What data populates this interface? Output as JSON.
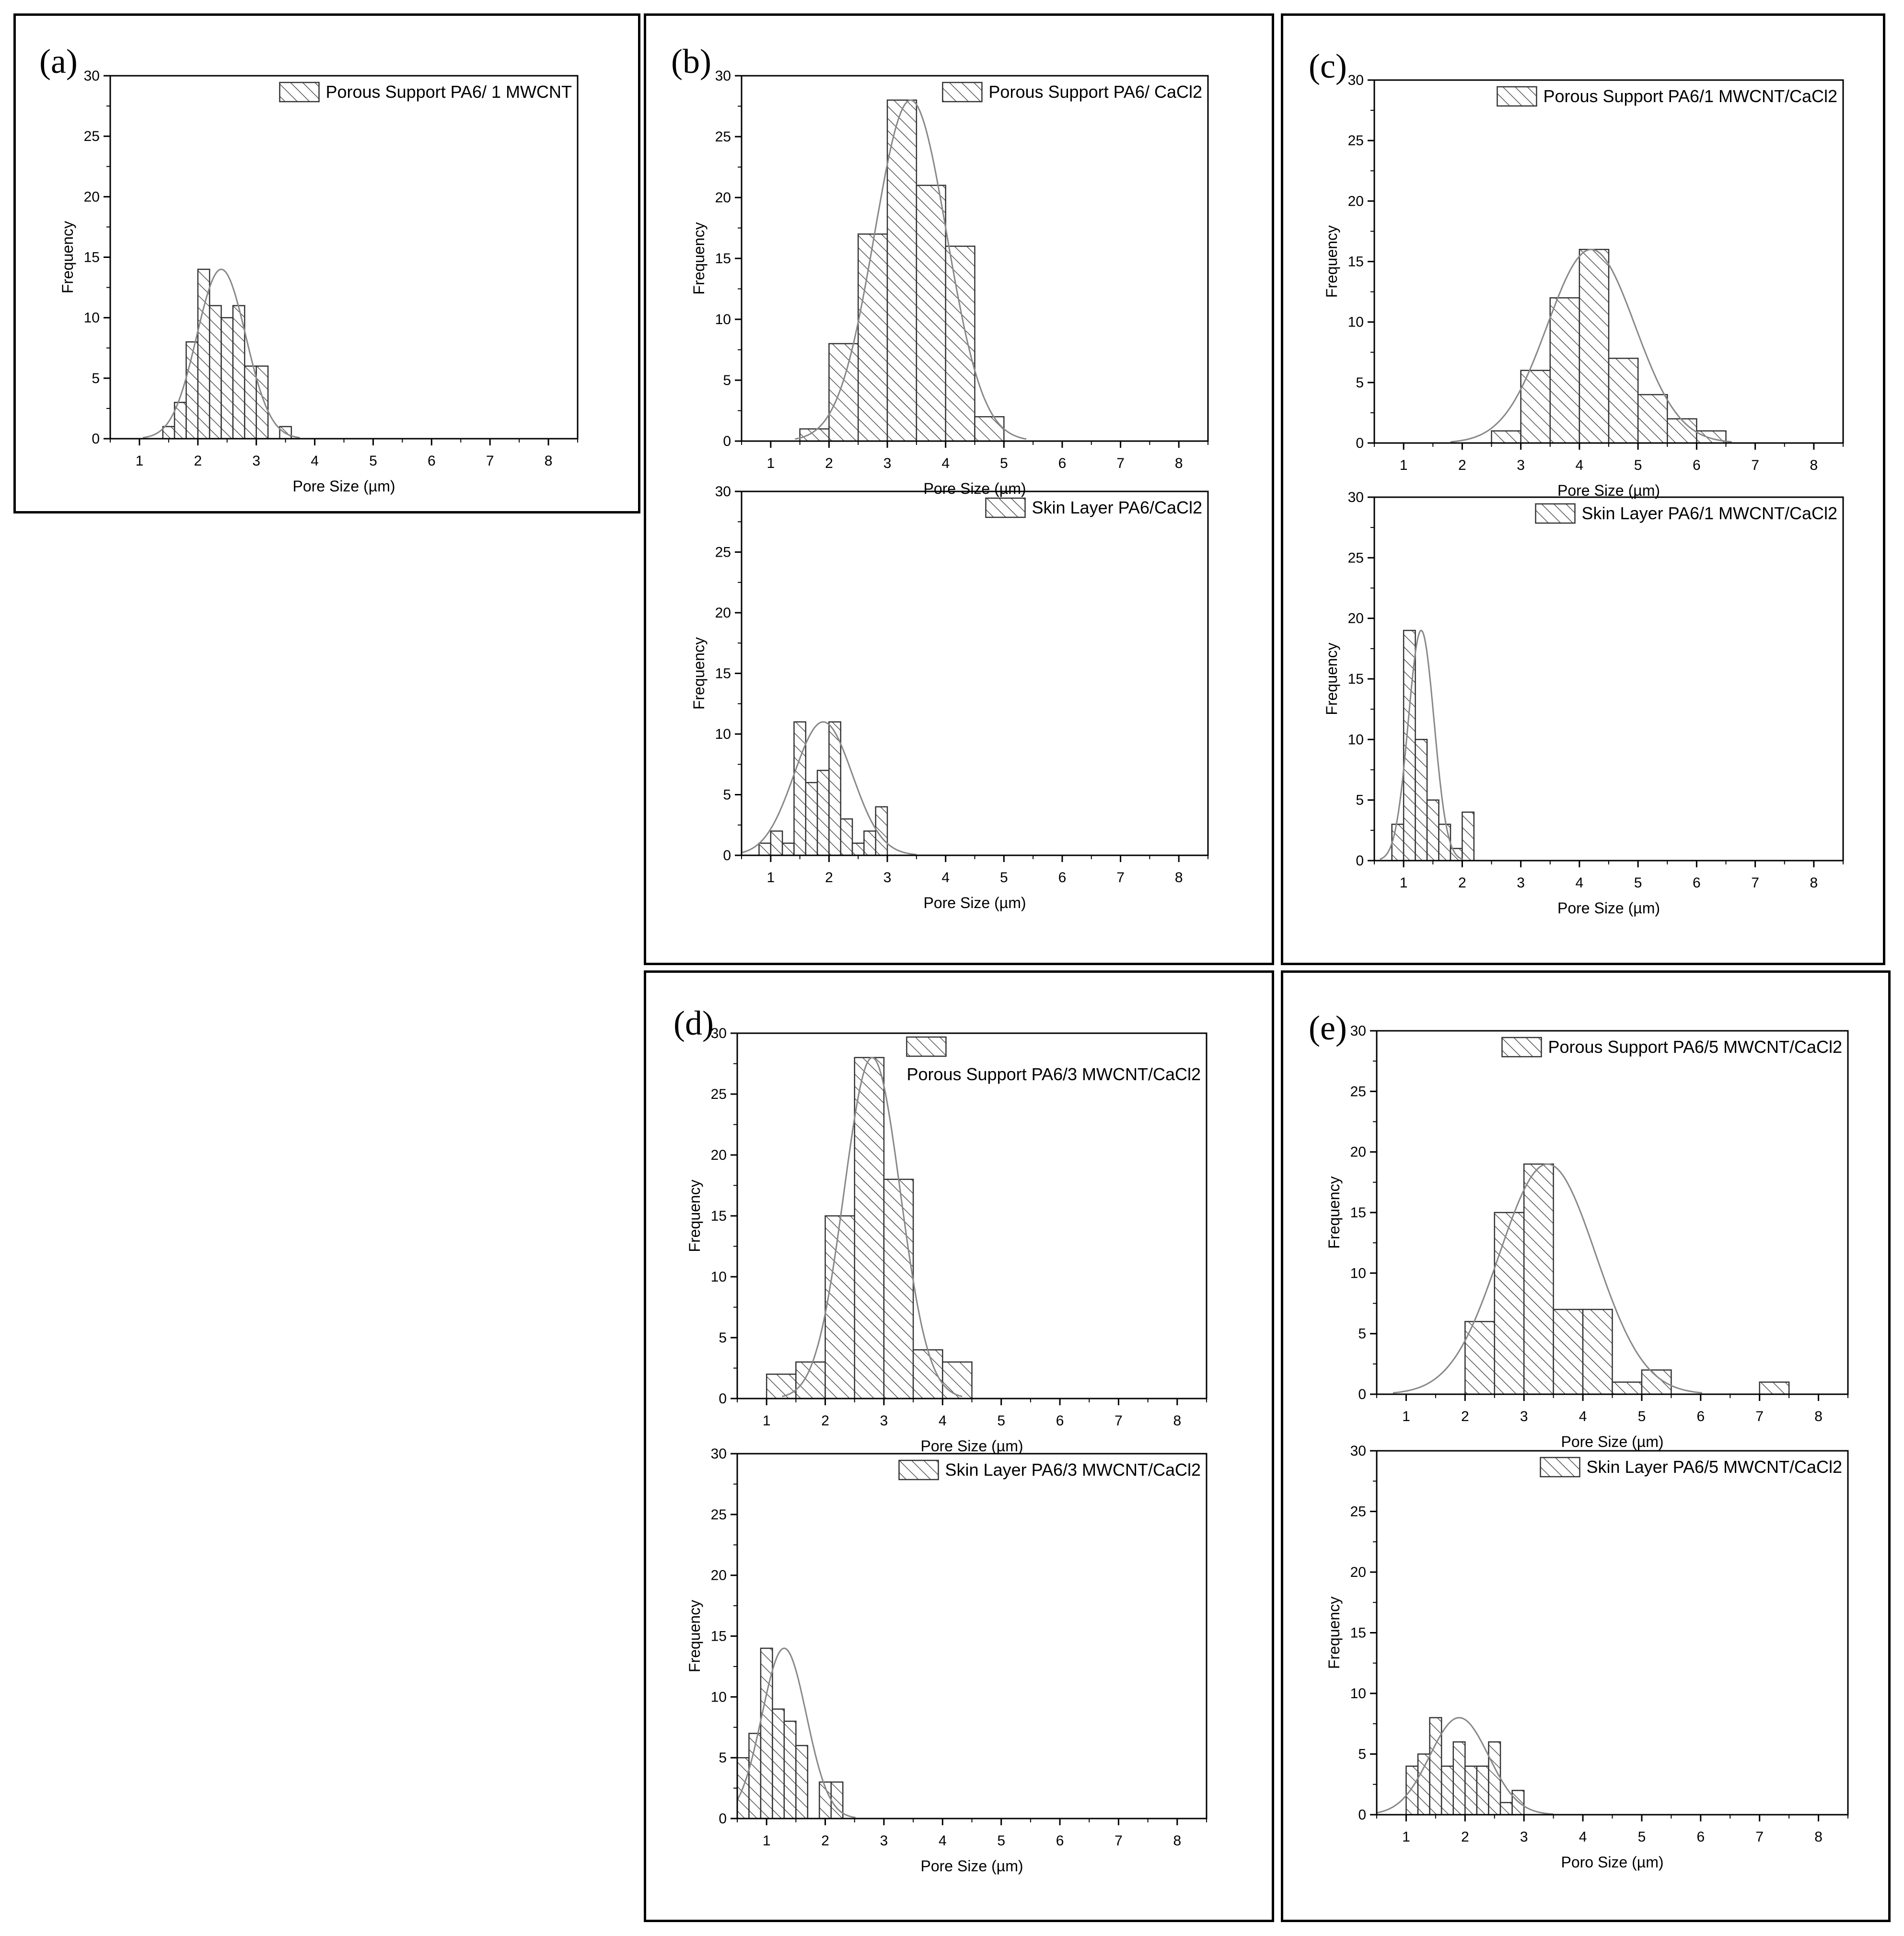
{
  "figure": {
    "panels": [
      {
        "id": "a",
        "label": "(a)"
      },
      {
        "id": "b",
        "label": "(b)"
      },
      {
        "id": "c",
        "label": "(c)"
      },
      {
        "id": "d",
        "label": "(d)"
      },
      {
        "id": "e",
        "label": "(e)"
      }
    ]
  },
  "colors": {
    "bar_stroke": "#333333",
    "hatch": "#555555",
    "curve": "#888888",
    "axis": "#000000"
  },
  "chart_data": [
    {
      "panel": "a",
      "type": "bar",
      "title": "",
      "legend": "Porous Support PA6/ 1 MWCNT",
      "xlabel": "Pore Size (µm)",
      "ylabel": "Frequency",
      "xlim": [
        0.5,
        8.5
      ],
      "ylim": [
        0,
        30
      ],
      "xticks": [
        "1",
        "2",
        "3",
        "4",
        "5",
        "6",
        "7",
        "8"
      ],
      "yticks": [
        "0",
        "5",
        "10",
        "15",
        "20",
        "25",
        "30"
      ],
      "bin_width": 0.2,
      "x": [
        1.5,
        1.7,
        1.9,
        2.1,
        2.3,
        2.5,
        2.7,
        2.9,
        3.1,
        3.3,
        3.5
      ],
      "values": [
        1,
        3,
        8,
        14,
        11,
        10,
        11,
        6,
        6,
        0,
        1
      ],
      "fit": {
        "type": "normal",
        "mean": 2.4,
        "sd": 0.42,
        "peak": 14
      }
    },
    {
      "panel": "b",
      "type": "bar",
      "title": "",
      "legend": "Porous Support PA6/ CaCl2",
      "xlabel": "Pore Size (µm)",
      "ylabel": "Frequency",
      "xlim": [
        0.5,
        8.5
      ],
      "ylim": [
        0,
        30
      ],
      "xticks": [
        "1",
        "2",
        "3",
        "4",
        "5",
        "6",
        "7",
        "8"
      ],
      "yticks": [
        "0",
        "5",
        "10",
        "15",
        "20",
        "25",
        "30"
      ],
      "bin_width": 0.5,
      "x": [
        1.75,
        2.25,
        2.75,
        3.25,
        3.75,
        4.25,
        4.75
      ],
      "values": [
        1,
        8,
        17,
        28,
        21,
        16,
        2
      ],
      "fit": {
        "type": "normal",
        "mean": 3.4,
        "sd": 0.62,
        "peak": 28
      }
    },
    {
      "panel": "b",
      "type": "bar",
      "title": "",
      "legend": "Skin Layer PA6/CaCl2",
      "xlabel": "Pore Size (µm)",
      "ylabel": "Frequency",
      "xlim": [
        0.5,
        8.5
      ],
      "ylim": [
        0,
        30
      ],
      "xticks": [
        "1",
        "2",
        "3",
        "4",
        "5",
        "6",
        "7",
        "8"
      ],
      "yticks": [
        "0",
        "5",
        "10",
        "15",
        "20",
        "25",
        "30"
      ],
      "bin_width": 0.2,
      "x": [
        0.9,
        1.1,
        1.3,
        1.5,
        1.7,
        1.9,
        2.1,
        2.3,
        2.5,
        2.7,
        2.9
      ],
      "values": [
        1,
        2,
        1,
        11,
        6,
        7,
        11,
        3,
        1,
        2,
        4
      ],
      "fit": {
        "type": "normal",
        "mean": 1.9,
        "sd": 0.5,
        "peak": 11
      }
    },
    {
      "panel": "c",
      "type": "bar",
      "title": "",
      "legend": "Porous Support PA6/1 MWCNT/CaCl2",
      "xlabel": "Pore Size (µm)",
      "ylabel": "Frequency",
      "xlim": [
        0.5,
        8.5
      ],
      "ylim": [
        0,
        30
      ],
      "xticks": [
        "1",
        "2",
        "3",
        "4",
        "5",
        "6",
        "7",
        "8"
      ],
      "yticks": [
        "0",
        "5",
        "10",
        "15",
        "20",
        "25",
        "30"
      ],
      "bin_width": 0.5,
      "x": [
        2.75,
        3.25,
        3.75,
        4.25,
        4.75,
        5.25,
        5.75,
        6.25
      ],
      "values": [
        1,
        6,
        12,
        16,
        7,
        4,
        2,
        1
      ],
      "fit": {
        "type": "normal",
        "mean": 4.2,
        "sd": 0.75,
        "peak": 16
      }
    },
    {
      "panel": "c",
      "type": "bar",
      "title": "",
      "legend": "Skin Layer PA6/1 MWCNT/CaCl2",
      "xlabel": "Pore Size (µm)",
      "ylabel": "Frequency",
      "xlim": [
        0.5,
        8.5
      ],
      "ylim": [
        0,
        30
      ],
      "xticks": [
        "1",
        "2",
        "3",
        "4",
        "5",
        "6",
        "7",
        "8"
      ],
      "yticks": [
        "0",
        "5",
        "10",
        "15",
        "20",
        "25",
        "30"
      ],
      "bin_width": 0.2,
      "x": [
        0.9,
        1.1,
        1.3,
        1.5,
        1.7,
        1.9,
        2.1
      ],
      "values": [
        3,
        19,
        10,
        5,
        3,
        1,
        4
      ],
      "fit": {
        "type": "normal",
        "mean": 1.3,
        "sd": 0.22,
        "peak": 19
      }
    },
    {
      "panel": "d",
      "type": "bar",
      "title": "",
      "legend": "Porous Support PA6/3 MWCNT/CaCl2",
      "xlabel": "Pore Size (µm)",
      "ylabel": "Frequency",
      "xlim": [
        0.5,
        8.5
      ],
      "ylim": [
        0,
        30
      ],
      "xticks": [
        "1",
        "2",
        "3",
        "4",
        "5",
        "6",
        "7",
        "8"
      ],
      "yticks": [
        "0",
        "5",
        "10",
        "15",
        "20",
        "25",
        "30"
      ],
      "bin_width": 0.5,
      "x": [
        1.25,
        1.75,
        2.25,
        2.75,
        3.25,
        3.75,
        4.25
      ],
      "values": [
        2,
        3,
        15,
        28,
        18,
        4,
        3
      ],
      "fit": {
        "type": "normal",
        "mean": 2.8,
        "sd": 0.48,
        "peak": 28
      }
    },
    {
      "panel": "d",
      "type": "bar",
      "title": "",
      "legend": "Skin Layer PA6/3 MWCNT/CaCl2",
      "xlabel": "Pore Size (µm)",
      "ylabel": "Frequency",
      "xlim": [
        0.5,
        8.5
      ],
      "ylim": [
        0,
        30
      ],
      "xticks": [
        "1",
        "2",
        "3",
        "4",
        "5",
        "6",
        "7",
        "8"
      ],
      "yticks": [
        "0",
        "5",
        "10",
        "15",
        "20",
        "25",
        "30"
      ],
      "bin_width": 0.2,
      "x": [
        0.6,
        0.8,
        1.0,
        1.2,
        1.4,
        1.6,
        1.8,
        2.0,
        2.2
      ],
      "values": [
        5,
        7,
        14,
        9,
        8,
        6,
        0,
        3,
        3
      ],
      "fit": {
        "type": "normal",
        "mean": 1.3,
        "sd": 0.38,
        "peak": 14
      }
    },
    {
      "panel": "e",
      "type": "bar",
      "title": "",
      "legend": "Porous Support PA6/5 MWCNT/CaCl2",
      "xlabel": "Pore Size (µm)",
      "ylabel": "Frequency",
      "xlim": [
        0.5,
        8.5
      ],
      "ylim": [
        0,
        30
      ],
      "xticks": [
        "1",
        "2",
        "3",
        "4",
        "5",
        "6",
        "7",
        "8"
      ],
      "yticks": [
        "0",
        "5",
        "10",
        "15",
        "20",
        "25",
        "30"
      ],
      "bin_width": 0.5,
      "x": [
        2.25,
        2.75,
        3.25,
        3.75,
        4.25,
        4.75,
        5.25,
        7.25
      ],
      "values": [
        6,
        15,
        19,
        7,
        7,
        1,
        2,
        1
      ],
      "fit": {
        "type": "normal",
        "mean": 3.4,
        "sd": 0.82,
        "peak": 19
      }
    },
    {
      "panel": "e",
      "type": "bar",
      "title": "",
      "legend": "Skin Layer PA6/5 MWCNT/CaCl2",
      "xlabel": "Poro Size (µm)",
      "ylabel": "Frequency",
      "xlim": [
        0.5,
        8.5
      ],
      "ylim": [
        0,
        30
      ],
      "xticks": [
        "1",
        "2",
        "3",
        "4",
        "5",
        "6",
        "7",
        "8"
      ],
      "yticks": [
        "0",
        "5",
        "10",
        "15",
        "20",
        "25",
        "30"
      ],
      "bin_width": 0.2,
      "x": [
        1.1,
        1.3,
        1.5,
        1.7,
        1.9,
        2.1,
        2.3,
        2.5,
        2.7,
        2.9
      ],
      "values": [
        4,
        5,
        8,
        4,
        6,
        4,
        4,
        6,
        1,
        2
      ],
      "fit": {
        "type": "normal",
        "mean": 1.9,
        "sd": 0.5,
        "peak": 8
      }
    }
  ]
}
